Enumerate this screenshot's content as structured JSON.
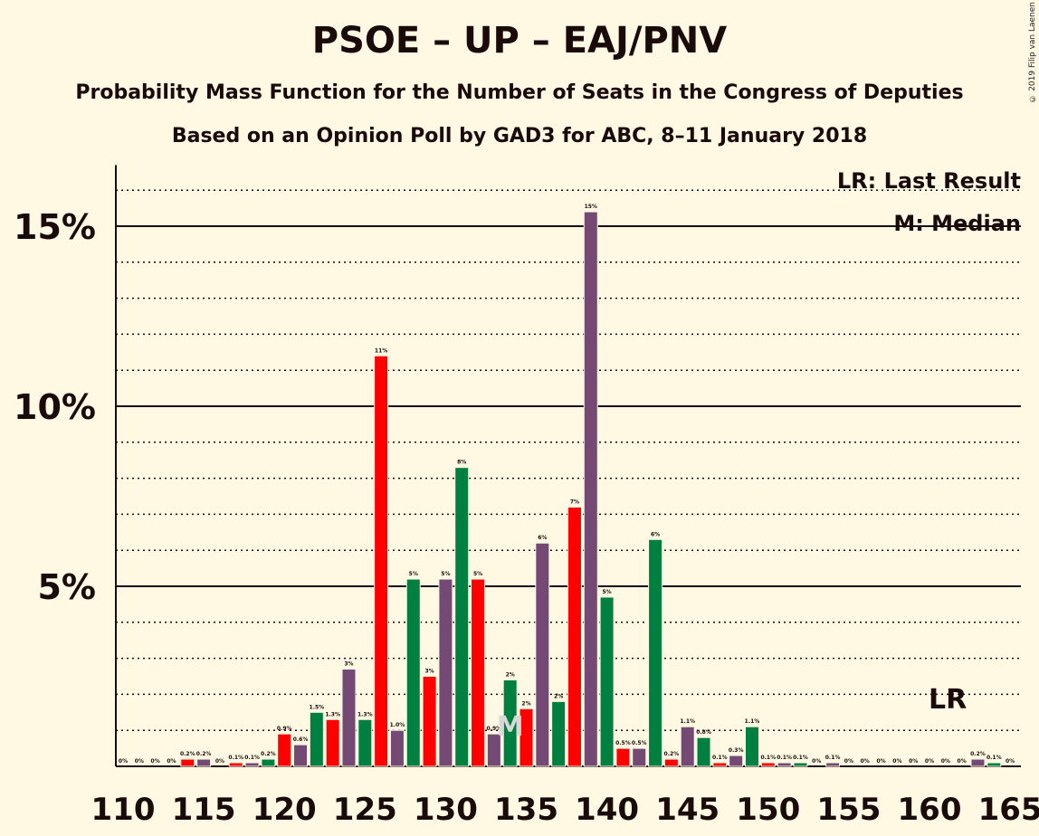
{
  "title": "PSOE – UP – EAJ/PNV",
  "subtitle": "Probability Mass Function for the Number of Seats in the Congress of Deputies",
  "subtitle2": "Based on an Opinion Poll by GAD3 for ABC, 8–11 January 2018",
  "copyright": "© 2019 Filip van Laenen",
  "legend": {
    "lr": "LR: Last Result",
    "m": "M: Median"
  },
  "markers": {
    "last_result_label": "LR",
    "last_result_seat": 161,
    "median_label": "M",
    "median_seat": 134
  },
  "colors": {
    "background": "#FFF8E3",
    "red": "#FF0000",
    "green": "#008040",
    "purple": "#744A75",
    "text": "#1a0a0a"
  },
  "chart_data": {
    "type": "bar",
    "x": [
      110,
      111,
      112,
      113,
      114,
      115,
      116,
      117,
      118,
      119,
      120,
      121,
      122,
      123,
      124,
      125,
      126,
      127,
      128,
      129,
      130,
      131,
      132,
      133,
      134,
      135,
      136,
      137,
      138,
      139,
      140,
      141,
      142,
      143,
      144,
      145,
      146,
      147,
      148,
      149,
      150,
      151,
      152,
      153,
      154,
      155,
      156,
      157,
      158,
      159,
      160,
      161,
      162,
      163,
      164,
      165
    ],
    "values": [
      0,
      0,
      0,
      0,
      0.2,
      0.2,
      0,
      0.1,
      0.1,
      0.2,
      0.9,
      0.6,
      1.5,
      1.3,
      2.7,
      1.3,
      11.4,
      1.0,
      5.2,
      2.5,
      5.2,
      8.3,
      5.2,
      0.9,
      2.4,
      1.6,
      6.2,
      1.8,
      7.2,
      15.4,
      4.7,
      0.5,
      0.5,
      6.3,
      0.2,
      1.1,
      0.8,
      0.1,
      0.3,
      1.1,
      0.1,
      0.1,
      0.1,
      0,
      0.1,
      0,
      0,
      0,
      0,
      0,
      0,
      0,
      0,
      0.2,
      0.1,
      0
    ],
    "labels": [
      "0%",
      "0%",
      "0%",
      "0%",
      "0.2%",
      "0.2%",
      "0%",
      "0.1%",
      "0.1%",
      "0.2%",
      "0.9%",
      "0.6%",
      "1.5%",
      "1.3%",
      "3%",
      "1.3%",
      "11%",
      "1.0%",
      "5%",
      "3%",
      "5%",
      "8%",
      "5%",
      "0.9%",
      "2%",
      "2%",
      "6%",
      "2%",
      "7%",
      "15%",
      "5%",
      "0.5%",
      "0.5%",
      "6%",
      "0.2%",
      "1.1%",
      "0.8%",
      "0.1%",
      "0.3%",
      "1.1%",
      "0.1%",
      "0.1%",
      "0.1%",
      "0%",
      "0.1%",
      "0%",
      "0%",
      "0%",
      "0%",
      "0%",
      "0%",
      "0%",
      "0%",
      "0.2%",
      "0.1%",
      "0%"
    ],
    "bar_colors": [
      "red",
      "green",
      "purple",
      "red",
      "red",
      "purple",
      "green",
      "red",
      "purple",
      "green",
      "red",
      "purple",
      "green",
      "red",
      "purple",
      "green",
      "red",
      "purple",
      "green",
      "red",
      "purple",
      "green",
      "red",
      "purple",
      "green",
      "red",
      "purple",
      "green",
      "red",
      "purple",
      "green",
      "red",
      "purple",
      "green",
      "red",
      "purple",
      "green",
      "red",
      "purple",
      "green",
      "red",
      "purple",
      "green",
      "red",
      "purple",
      "green",
      "red",
      "purple",
      "green",
      "red",
      "purple",
      "green",
      "red",
      "purple",
      "green",
      "red"
    ],
    "xticks": [
      "110",
      "115",
      "120",
      "125",
      "130",
      "135",
      "140",
      "145",
      "150",
      "155",
      "160",
      "165"
    ],
    "yticks": [
      {
        "value": 5,
        "label": "5%"
      },
      {
        "value": 10,
        "label": "10%"
      },
      {
        "value": 15,
        "label": "15%"
      }
    ],
    "ylim": [
      0,
      16.7
    ],
    "xlabel": "",
    "ylabel": ""
  }
}
